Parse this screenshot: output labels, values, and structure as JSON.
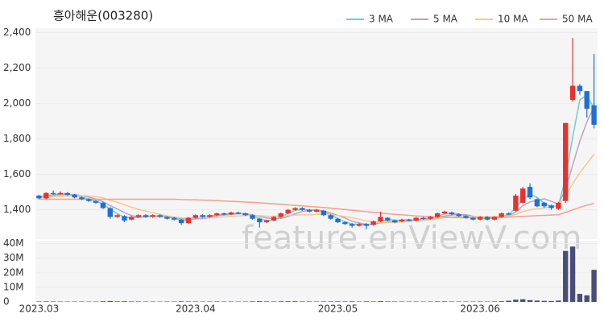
{
  "chart_data": {
    "type": "candlestick",
    "title": "흥아해운(003280)",
    "watermark": "feature.enViewV.com",
    "categories": [
      "2023.03",
      null,
      null,
      null,
      null,
      null,
      null,
      null,
      null,
      null,
      null,
      null,
      null,
      null,
      null,
      null,
      null,
      null,
      null,
      null,
      null,
      null,
      "2023.04",
      null,
      null,
      null,
      null,
      null,
      null,
      null,
      null,
      null,
      null,
      null,
      null,
      null,
      null,
      null,
      null,
      null,
      null,
      null,
      "2023.05",
      null,
      null,
      null,
      null,
      null,
      null,
      null,
      null,
      null,
      null,
      null,
      null,
      null,
      null,
      null,
      null,
      null,
      null,
      null,
      "2023.06",
      null,
      null,
      null,
      null,
      null,
      null,
      null,
      null,
      null,
      null,
      null,
      null,
      null,
      null,
      null,
      null
    ],
    "open": [
      1480,
      1465,
      1495,
      1490,
      1495,
      1485,
      1470,
      1460,
      1450,
      1440,
      1410,
      1360,
      1365,
      1345,
      1360,
      1370,
      1360,
      1370,
      1360,
      1355,
      1345,
      1325,
      1355,
      1370,
      1360,
      1370,
      1380,
      1375,
      1385,
      1380,
      1370,
      1350,
      1330,
      1340,
      1360,
      1380,
      1400,
      1410,
      1400,
      1390,
      1395,
      1370,
      1350,
      1330,
      1320,
      1310,
      1320,
      1315,
      1335,
      1355,
      1340,
      1335,
      1345,
      1340,
      1355,
      1350,
      1360,
      1380,
      1385,
      1375,
      1365,
      1355,
      1345,
      1360,
      1345,
      1360,
      1380,
      1395,
      1440,
      1530,
      1460,
      1440,
      1425,
      1405,
      1450,
      2020,
      2100,
      2070,
      1990
    ],
    "high": [
      1485,
      1500,
      1510,
      1505,
      1500,
      1490,
      1475,
      1465,
      1455,
      1445,
      1415,
      1375,
      1370,
      1365,
      1375,
      1375,
      1375,
      1375,
      1365,
      1360,
      1350,
      1360,
      1375,
      1375,
      1375,
      1385,
      1385,
      1390,
      1390,
      1385,
      1375,
      1355,
      1345,
      1365,
      1385,
      1405,
      1415,
      1415,
      1405,
      1405,
      1400,
      1375,
      1355,
      1335,
      1325,
      1325,
      1325,
      1340,
      1390,
      1360,
      1345,
      1350,
      1350,
      1360,
      1360,
      1365,
      1385,
      1395,
      1390,
      1380,
      1370,
      1360,
      1365,
      1365,
      1365,
      1385,
      1385,
      1490,
      1530,
      1550,
      1465,
      1445,
      1430,
      1445,
      1890,
      2370,
      2110,
      2070,
      2280
    ],
    "low": [
      1460,
      1460,
      1485,
      1485,
      1480,
      1465,
      1455,
      1445,
      1435,
      1405,
      1350,
      1355,
      1330,
      1340,
      1355,
      1355,
      1355,
      1355,
      1345,
      1340,
      1315,
      1320,
      1350,
      1355,
      1355,
      1365,
      1370,
      1370,
      1375,
      1365,
      1345,
      1300,
      1325,
      1335,
      1355,
      1375,
      1395,
      1395,
      1385,
      1385,
      1365,
      1345,
      1325,
      1315,
      1300,
      1305,
      1290,
      1310,
      1330,
      1335,
      1325,
      1330,
      1335,
      1335,
      1345,
      1345,
      1355,
      1375,
      1370,
      1360,
      1350,
      1340,
      1340,
      1340,
      1340,
      1355,
      1370,
      1390,
      1435,
      1460,
      1415,
      1410,
      1400,
      1400,
      1440,
      2010,
      2050,
      1920,
      1860
    ],
    "close": [
      1465,
      1495,
      1490,
      1495,
      1485,
      1470,
      1460,
      1450,
      1440,
      1410,
      1360,
      1370,
      1340,
      1360,
      1370,
      1360,
      1370,
      1360,
      1350,
      1345,
      1325,
      1355,
      1370,
      1360,
      1370,
      1380,
      1375,
      1385,
      1380,
      1370,
      1350,
      1330,
      1340,
      1360,
      1380,
      1400,
      1410,
      1400,
      1390,
      1400,
      1370,
      1350,
      1330,
      1320,
      1310,
      1320,
      1310,
      1335,
      1360,
      1340,
      1330,
      1345,
      1340,
      1355,
      1350,
      1360,
      1380,
      1390,
      1375,
      1365,
      1355,
      1345,
      1360,
      1345,
      1360,
      1380,
      1375,
      1480,
      1520,
      1470,
      1420,
      1420,
      1410,
      1440,
      1890,
      2100,
      2070,
      1970,
      1880
    ],
    "up_color": "#e8312f",
    "down_color": "#1f6fd6",
    "series": [
      {
        "name": "3 MA",
        "color": "#6fcfc9",
        "values": [
          1470,
          1480,
          1483,
          1493,
          1490,
          1483,
          1472,
          1460,
          1450,
          1433,
          1403,
          1380,
          1357,
          1357,
          1357,
          1363,
          1367,
          1363,
          1360,
          1352,
          1340,
          1342,
          1350,
          1362,
          1367,
          1370,
          1375,
          1380,
          1380,
          1378,
          1367,
          1350,
          1340,
          1343,
          1360,
          1380,
          1397,
          1403,
          1400,
          1397,
          1387,
          1373,
          1350,
          1333,
          1320,
          1317,
          1313,
          1322,
          1335,
          1345,
          1343,
          1338,
          1338,
          1347,
          1348,
          1355,
          1363,
          1377,
          1382,
          1377,
          1365,
          1355,
          1353,
          1350,
          1355,
          1362,
          1372,
          1412,
          1458,
          1490,
          1470,
          1437,
          1417,
          1423,
          1580,
          1810,
          2020,
          2047,
          1973
        ]
      },
      {
        "name": "5 MA",
        "color": "#b7a3c9",
        "values": [
          1475,
          1478,
          1482,
          1485,
          1486,
          1487,
          1480,
          1471,
          1461,
          1446,
          1424,
          1406,
          1384,
          1368,
          1360,
          1360,
          1364,
          1364,
          1362,
          1357,
          1350,
          1347,
          1349,
          1351,
          1356,
          1367,
          1371,
          1374,
          1378,
          1378,
          1372,
          1363,
          1354,
          1350,
          1352,
          1362,
          1378,
          1390,
          1398,
          1400,
          1394,
          1382,
          1368,
          1354,
          1336,
          1326,
          1318,
          1319,
          1327,
          1333,
          1335,
          1342,
          1344,
          1342,
          1348,
          1350,
          1357,
          1365,
          1371,
          1374,
          1373,
          1364,
          1360,
          1354,
          1351,
          1358,
          1364,
          1388,
          1423,
          1445,
          1453,
          1462,
          1448,
          1432,
          1516,
          1652,
          1786,
          1896,
          1982
        ]
      },
      {
        "name": "10 MA",
        "color": "#f5c98c",
        "values": [
          1470,
          1472,
          1474,
          1476,
          1478,
          1480,
          1480,
          1478,
          1475,
          1468,
          1455,
          1443,
          1428,
          1415,
          1403,
          1393,
          1384,
          1375,
          1366,
          1360,
          1355,
          1354,
          1356,
          1356,
          1356,
          1358,
          1360,
          1362,
          1366,
          1368,
          1369,
          1367,
          1364,
          1364,
          1365,
          1367,
          1370,
          1372,
          1373,
          1375,
          1375,
          1372,
          1368,
          1362,
          1355,
          1347,
          1338,
          1332,
          1329,
          1329,
          1328,
          1332,
          1335,
          1337,
          1340,
          1344,
          1350,
          1356,
          1360,
          1362,
          1362,
          1362,
          1361,
          1361,
          1361,
          1363,
          1364,
          1374,
          1390,
          1400,
          1406,
          1411,
          1416,
          1424,
          1476,
          1548,
          1609,
          1660,
          1715
        ]
      },
      {
        "name": "50 MA",
        "color": "#f2a08c",
        "values": [
          1460,
          1460,
          1460,
          1460,
          1460,
          1460,
          1460,
          1460,
          1460,
          1460,
          1460,
          1460,
          1460,
          1460,
          1460,
          1460,
          1460,
          1460,
          1460,
          1460,
          1458,
          1457,
          1456,
          1455,
          1454,
          1452,
          1450,
          1448,
          1446,
          1444,
          1442,
          1440,
          1437,
          1434,
          1431,
          1428,
          1425,
          1422,
          1419,
          1416,
          1413,
          1410,
          1406,
          1402,
          1398,
          1394,
          1390,
          1386,
          1382,
          1378,
          1375,
          1372,
          1369,
          1366,
          1364,
          1362,
          1360,
          1358,
          1357,
          1356,
          1355,
          1355,
          1355,
          1356,
          1357,
          1358,
          1359,
          1361,
          1363,
          1365,
          1367,
          1369,
          1371,
          1373,
          1385,
          1400,
          1414,
          1426,
          1436
        ]
      }
    ],
    "ylim": [
      1235,
      2425
    ],
    "yticks": [
      {
        "value": 1400,
        "label": "1,400"
      },
      {
        "value": 1600,
        "label": "1,600"
      },
      {
        "value": 1800,
        "label": "1,800"
      },
      {
        "value": 2000,
        "label": "2,000"
      },
      {
        "value": 2200,
        "label": "2,200"
      },
      {
        "value": 2400,
        "label": "2,400"
      }
    ],
    "grid": true,
    "volume": {
      "color": "#4a4d78",
      "ylim": [
        0,
        42000000
      ],
      "yticks": [
        0,
        {
          "value": 10000000,
          "label": "10M"
        },
        {
          "value": 20000000,
          "label": "20M"
        },
        {
          "value": 30000000,
          "label": "30M"
        },
        {
          "value": 40000000,
          "label": "40M"
        }
      ],
      "values": [
        300000,
        350000,
        280000,
        250000,
        220000,
        240000,
        260000,
        230000,
        250000,
        400000,
        600000,
        350000,
        420000,
        300000,
        280000,
        240000,
        230000,
        220000,
        250000,
        230000,
        380000,
        300000,
        280000,
        240000,
        260000,
        300000,
        250000,
        270000,
        240000,
        260000,
        350000,
        450000,
        320000,
        300000,
        380000,
        420000,
        400000,
        300000,
        280000,
        260000,
        300000,
        320000,
        350000,
        300000,
        380000,
        280000,
        350000,
        320000,
        500000,
        300000,
        280000,
        260000,
        250000,
        270000,
        240000,
        260000,
        330000,
        350000,
        280000,
        260000,
        250000,
        260000,
        280000,
        260000,
        300000,
        450000,
        800000,
        1500000,
        1800000,
        1200000,
        900000,
        700000,
        600000,
        900000,
        35000000,
        38000000,
        5500000,
        4500000,
        22000000
      ]
    }
  }
}
